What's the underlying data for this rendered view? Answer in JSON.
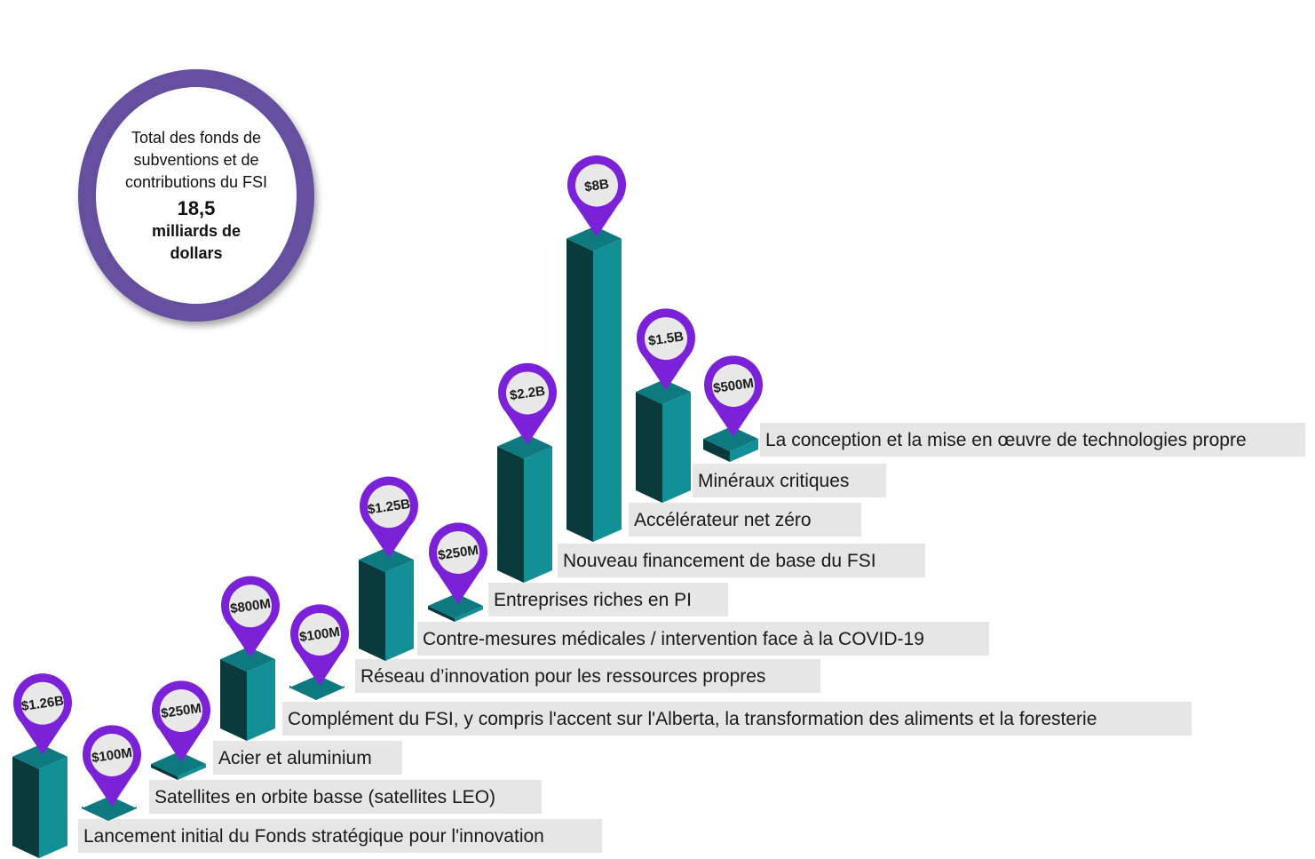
{
  "total": {
    "description": "Total des fonds de subventions et de contributions du FSI",
    "value": "18,5",
    "unit": "milliards de dollars"
  },
  "colors": {
    "bar_front": "#138f96",
    "bar_side": "#0b3a3d",
    "bar_top": "#0e7a80",
    "pin": "#7b22d9",
    "label_bg": "#e6e6e6",
    "total_ring": "#674fa0"
  },
  "chart_data": {
    "type": "bar",
    "categories": [
      "Lancement initial du Fonds stratégique pour l'innovation",
      "Satellites en orbite basse (satellites LEO)",
      "Acier et aluminium",
      "Complément du FSI, y compris l'accent sur l'Alberta, la transformation des aliments et la foresterie",
      "Réseau d’innovation pour les ressources propres",
      "Contre-mesures médicales / intervention face à la COVID-19",
      "Entreprises riches en PI",
      "Nouveau financement de base du FSI",
      "Accélérateur net zéro",
      "Minéraux critiques",
      "La conception et la mise en œuvre de technologies propre"
    ],
    "values": [
      1.26,
      0.1,
      0.25,
      0.8,
      0.1,
      1.25,
      0.25,
      2.2,
      8,
      1.5,
      0.5
    ],
    "value_labels": [
      "$1.26B",
      "$100M",
      "$250M",
      "$800M",
      "$100M",
      "$1.25B",
      "$250M",
      "$2.2B",
      "$8B",
      "$1.5B",
      "$500M"
    ],
    "unit": "milliards de dollars"
  }
}
